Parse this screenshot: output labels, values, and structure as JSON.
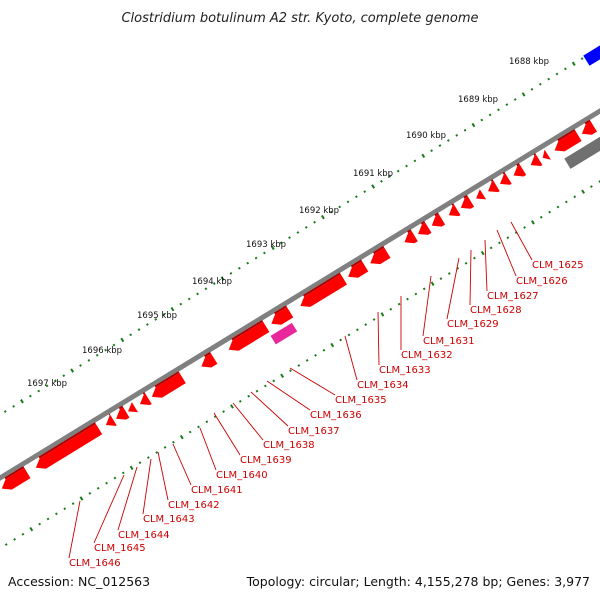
{
  "title": "Clostridium botulinum A2 str. Kyoto, complete genome",
  "footer": {
    "accession": "Accession: NC_012563",
    "summary": "Topology: circular; Length: 4,155,278 bp; Genes: 3,977"
  },
  "scale_labels": [
    "1688 kbp",
    "1689 kbp",
    "1690 kbp",
    "1691 kbp",
    "1692 kbp",
    "1693 kbp",
    "1694 kbp",
    "1695 kbp",
    "1696 kbp",
    "1697 kbp"
  ],
  "gene_labels": [
    "CLM_1625",
    "CLM_1626",
    "CLM_1627",
    "CLM_1628",
    "CLM_1629",
    "CLM_1631",
    "CLM_1632",
    "CLM_1633",
    "CLM_1634",
    "CLM_1635",
    "CLM_1636",
    "CLM_1637",
    "CLM_1638",
    "CLM_1639",
    "CLM_1640",
    "CLM_1641",
    "CLM_1642",
    "CLM_1643",
    "CLM_1644",
    "CLM_1645",
    "CLM_1646"
  ],
  "colors": {
    "cds": "#ff0000",
    "cds_dark": "#b00000",
    "backbone": "#808080",
    "ticks": "#1a7a1a",
    "trna": "#e8289a",
    "rrna": "#707070",
    "other_feature": "#0000ff",
    "label": "#cc0000",
    "leader": "#cc0000"
  }
}
